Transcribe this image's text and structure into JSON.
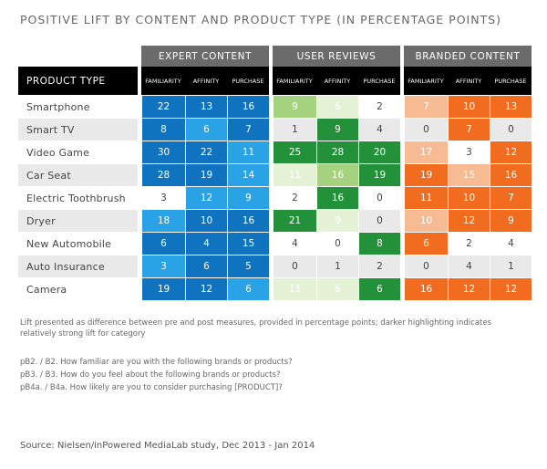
{
  "title": "POSITIVE LIFT BY CONTENT AND PRODUCT TYPE (IN PERCENTAGE POINTS)",
  "chart_data": {
    "type": "table",
    "title": "POSITIVE LIFT BY CONTENT AND PRODUCT TYPE (IN PERCENTAGE POINTS)",
    "row_header": "PRODUCT TYPE",
    "groups": [
      "EXPERT CONTENT",
      "USER REVIEWS",
      "BRANDED CONTENT"
    ],
    "metrics": [
      "FAMILIARITY",
      "AFFINITY",
      "PURCHASE"
    ],
    "group_colors": [
      [
        "#d8eefb",
        "#2aa2e6",
        "#0f73bf"
      ],
      [
        "#e4f1d4",
        "#a5d27e",
        "#23913a"
      ],
      [
        "#fde9d6",
        "#f7bb93",
        "#f26c1f"
      ]
    ],
    "rows": [
      {
        "product": "Smartphone",
        "values": [
          [
            22,
            13,
            16
          ],
          [
            9,
            6,
            2
          ],
          [
            7,
            10,
            13
          ]
        ],
        "levels": [
          [
            3,
            3,
            3
          ],
          [
            2,
            1,
            0
          ],
          [
            2,
            3,
            3
          ]
        ]
      },
      {
        "product": "Smart TV",
        "values": [
          [
            8,
            6,
            7
          ],
          [
            1,
            9,
            4
          ],
          [
            0,
            7,
            0
          ]
        ],
        "levels": [
          [
            3,
            2,
            3
          ],
          [
            0,
            3,
            0
          ],
          [
            0,
            3,
            0
          ]
        ]
      },
      {
        "product": "Video Game",
        "values": [
          [
            30,
            22,
            11
          ],
          [
            25,
            28,
            20
          ],
          [
            17,
            3,
            12
          ]
        ],
        "levels": [
          [
            3,
            3,
            2
          ],
          [
            3,
            3,
            3
          ],
          [
            2,
            0,
            3
          ]
        ]
      },
      {
        "product": "Car Seat",
        "values": [
          [
            28,
            19,
            14
          ],
          [
            11,
            16,
            19
          ],
          [
            19,
            15,
            16
          ]
        ],
        "levels": [
          [
            3,
            3,
            2
          ],
          [
            1,
            2,
            3
          ],
          [
            3,
            2,
            3
          ]
        ]
      },
      {
        "product": "Electric Toothbrush",
        "values": [
          [
            3,
            12,
            9
          ],
          [
            2,
            16,
            0
          ],
          [
            11,
            10,
            7
          ]
        ],
        "levels": [
          [
            0,
            2,
            2
          ],
          [
            0,
            3,
            0
          ],
          [
            3,
            3,
            3
          ]
        ]
      },
      {
        "product": "Dryer",
        "values": [
          [
            18,
            10,
            16
          ],
          [
            21,
            9,
            0
          ],
          [
            10,
            12,
            9
          ]
        ],
        "levels": [
          [
            2,
            3,
            3
          ],
          [
            3,
            1,
            0
          ],
          [
            2,
            3,
            3
          ]
        ]
      },
      {
        "product": "New Automobile",
        "values": [
          [
            6,
            4,
            15
          ],
          [
            4,
            0,
            8
          ],
          [
            6,
            2,
            4
          ]
        ],
        "levels": [
          [
            3,
            3,
            3
          ],
          [
            0,
            0,
            3
          ],
          [
            3,
            0,
            0
          ]
        ]
      },
      {
        "product": "Auto Insurance",
        "values": [
          [
            3,
            6,
            5
          ],
          [
            0,
            1,
            2
          ],
          [
            0,
            4,
            1
          ]
        ],
        "levels": [
          [
            2,
            3,
            3
          ],
          [
            0,
            0,
            0
          ],
          [
            0,
            0,
            0
          ]
        ]
      },
      {
        "product": "Camera",
        "values": [
          [
            19,
            12,
            6
          ],
          [
            11,
            6,
            6
          ],
          [
            16,
            12,
            12
          ]
        ],
        "levels": [
          [
            3,
            3,
            2
          ],
          [
            1,
            1,
            3
          ],
          [
            3,
            3,
            3
          ]
        ]
      }
    ]
  },
  "footnote": "Lift presented as difference between pre and post measures, provided in percentage points; darker highlighting indicates relatively strong lift for category",
  "questions": [
    "pB2. / B2. How familiar are you with the following brands or products?",
    "pB3. / B3. How do you feel about the following brands or products?",
    "pB4a. / B4a. How likely are you to consider purchasing [PRODUCT]?"
  ],
  "source": "Source: Nielsen/inPowered MediaLab study, Dec 2013 - Jan 2014"
}
